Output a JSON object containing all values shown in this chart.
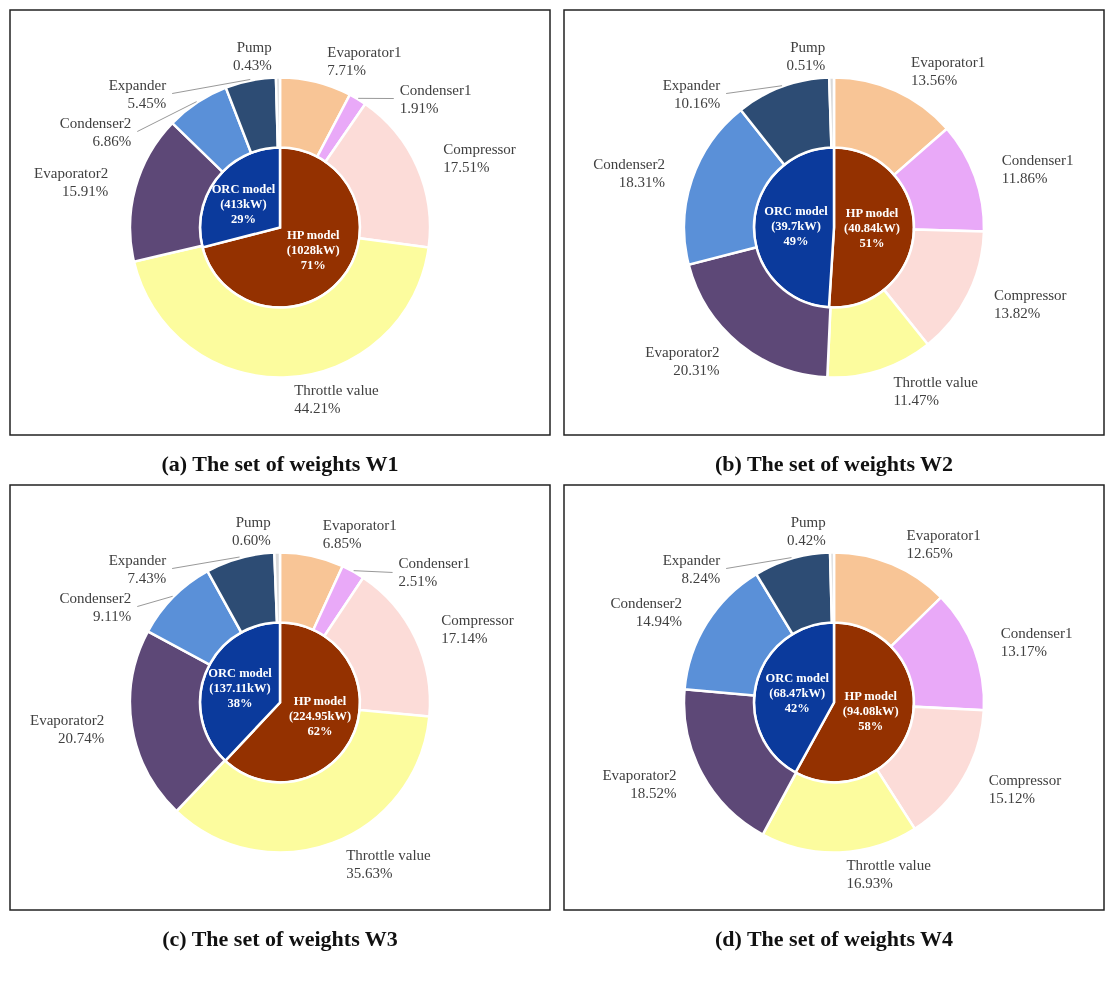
{
  "chart_data": [
    {
      "type": "pie",
      "categories": [
        "HP model\n(1028kW)",
        "ORC model\n(413kW)"
      ],
      "values": [
        71,
        29
      ],
      "value_labels": [
        "71%",
        "29%"
      ],
      "colors": [
        "#943100",
        "#0b3a9c"
      ]
    },
    {
      "type": "donut",
      "title": "(a) The set of weights W1",
      "categories": [
        "Evaporator1",
        "Condenser1",
        "Compressor",
        "Throttle value",
        "Evaporator2",
        "Condenser2",
        "Expander",
        "Pump"
      ],
      "values": [
        7.71,
        1.91,
        17.51,
        44.21,
        15.91,
        6.86,
        5.45,
        0.43
      ],
      "value_labels": [
        "7.71%",
        "1.91%",
        "17.51%",
        "44.21%",
        "15.91%",
        "6.86%",
        "5.45%",
        "0.43%"
      ],
      "colors": [
        "#f8c596",
        "#e9a9f8",
        "#fcdcd8",
        "#fcfc9e",
        "#5d4877",
        "#5a90d8",
        "#2d4c74",
        "#d9d9d9"
      ]
    },
    {
      "type": "pie",
      "categories": [
        "HP model\n(40.84kW)",
        "ORC model\n(39.7kW)"
      ],
      "values": [
        51,
        49
      ],
      "value_labels": [
        "51%",
        "49%"
      ],
      "colors": [
        "#943100",
        "#0b3a9c"
      ]
    },
    {
      "type": "donut",
      "title": "(b) The set of weights W2",
      "categories": [
        "Evaporator1",
        "Condenser1",
        "Compressor",
        "Throttle value",
        "Evaporator2",
        "Condenser2",
        "Expander",
        "Pump"
      ],
      "values": [
        13.56,
        11.86,
        13.82,
        11.47,
        20.31,
        18.31,
        10.16,
        0.51
      ],
      "value_labels": [
        "13.56%",
        "11.86%",
        "13.82%",
        "11.47%",
        "20.31%",
        "18.31%",
        "10.16%",
        "0.51%"
      ],
      "colors": [
        "#f8c596",
        "#e9a9f8",
        "#fcdcd8",
        "#fcfc9e",
        "#5d4877",
        "#5a90d8",
        "#2d4c74",
        "#d9d9d9"
      ]
    },
    {
      "type": "pie",
      "categories": [
        "HP model\n(224.95kW)",
        "ORC model\n(137.11kW)"
      ],
      "values": [
        62,
        38
      ],
      "value_labels": [
        "62%",
        "38%"
      ],
      "colors": [
        "#943100",
        "#0b3a9c"
      ]
    },
    {
      "type": "donut",
      "title": "(c) The set of weights W3",
      "categories": [
        "Evaporator1",
        "Condenser1",
        "Compressor",
        "Throttle value",
        "Evaporator2",
        "Condenser2",
        "Expander",
        "Pump"
      ],
      "values": [
        6.85,
        2.51,
        17.14,
        35.63,
        20.74,
        9.11,
        7.43,
        0.6
      ],
      "value_labels": [
        "6.85%",
        "2.51%",
        "17.14%",
        "35.63%",
        "20.74%",
        "9.11%",
        "7.43%",
        "0.60%"
      ],
      "colors": [
        "#f8c596",
        "#e9a9f8",
        "#fcdcd8",
        "#fcfc9e",
        "#5d4877",
        "#5a90d8",
        "#2d4c74",
        "#d9d9d9"
      ]
    },
    {
      "type": "pie",
      "categories": [
        "HP model\n(94.08kW)",
        "ORC model\n(68.47kW)"
      ],
      "values": [
        58,
        42
      ],
      "value_labels": [
        "58%",
        "42%"
      ],
      "colors": [
        "#943100",
        "#0b3a9c"
      ]
    },
    {
      "type": "donut",
      "title": "(d) The set of weights W4",
      "categories": [
        "Evaporator1",
        "Condenser1",
        "Compressor",
        "Throttle value",
        "Evaporator2",
        "Condenser2",
        "Expander",
        "Pump"
      ],
      "values": [
        12.65,
        13.17,
        15.12,
        16.93,
        18.52,
        14.94,
        8.24,
        0.42
      ],
      "value_labels": [
        "12.65%",
        "13.17%",
        "15.12%",
        "16.93%",
        "18.52%",
        "14.94%",
        "8.24%",
        "0.42%"
      ],
      "colors": [
        "#f8c596",
        "#e9a9f8",
        "#fcdcd8",
        "#fcfc9e",
        "#5d4877",
        "#5a90d8",
        "#2d4c74",
        "#d9d9d9"
      ]
    }
  ]
}
